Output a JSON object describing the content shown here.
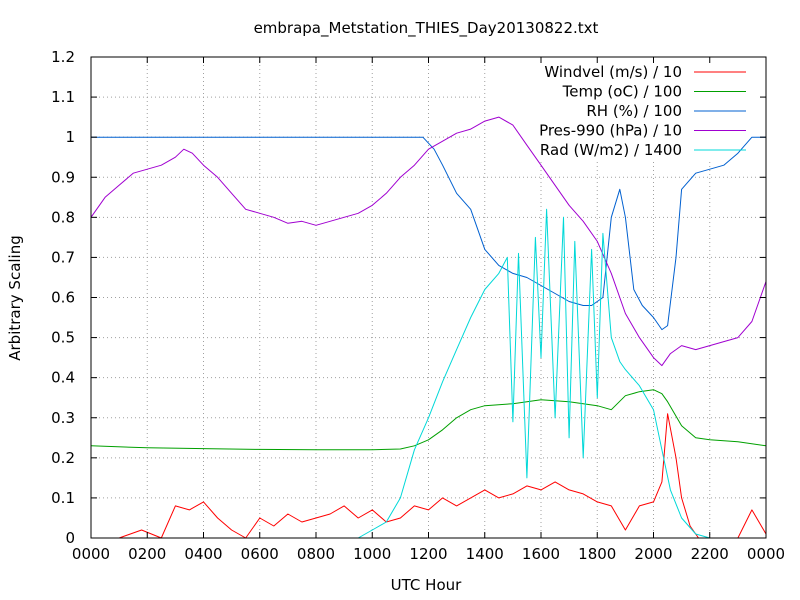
{
  "chart_data": {
    "type": "line",
    "title": "embrapa_Metstation_THIES_Day20130822.txt",
    "xlabel": "UTC Hour",
    "ylabel": "Arbitrary Scaling",
    "xlim": [
      0,
      24
    ],
    "ylim": [
      0,
      1.2
    ],
    "grid": true,
    "legend_position": "top-right",
    "x_ticks": [
      {
        "value": 0,
        "label": "0000"
      },
      {
        "value": 2,
        "label": "0200"
      },
      {
        "value": 4,
        "label": "0400"
      },
      {
        "value": 6,
        "label": "0600"
      },
      {
        "value": 8,
        "label": "0800"
      },
      {
        "value": 10,
        "label": "1000"
      },
      {
        "value": 12,
        "label": "1200"
      },
      {
        "value": 14,
        "label": "1400"
      },
      {
        "value": 16,
        "label": "1600"
      },
      {
        "value": 18,
        "label": "1800"
      },
      {
        "value": 20,
        "label": "2000"
      },
      {
        "value": 22,
        "label": "2200"
      },
      {
        "value": 24,
        "label": "0000"
      }
    ],
    "y_ticks": [
      {
        "value": 0,
        "label": "0"
      },
      {
        "value": 0.1,
        "label": "0.1"
      },
      {
        "value": 0.2,
        "label": "0.2"
      },
      {
        "value": 0.3,
        "label": "0.3"
      },
      {
        "value": 0.4,
        "label": "0.4"
      },
      {
        "value": 0.5,
        "label": "0.5"
      },
      {
        "value": 0.6,
        "label": "0.6"
      },
      {
        "value": 0.7,
        "label": "0.7"
      },
      {
        "value": 0.8,
        "label": "0.8"
      },
      {
        "value": 0.9,
        "label": "0.9"
      },
      {
        "value": 1.0,
        "label": "1"
      },
      {
        "value": 1.1,
        "label": "1.1"
      },
      {
        "value": 1.2,
        "label": "1.2"
      }
    ],
    "series": [
      {
        "name": "Windvel (m/s) / 10",
        "color": "#ff0000",
        "x": [
          0,
          1.0,
          1.8,
          2.5,
          3.0,
          3.5,
          4.0,
          4.5,
          5.0,
          5.5,
          6.0,
          6.5,
          7.0,
          7.5,
          8.0,
          8.5,
          9.0,
          9.5,
          10.0,
          10.5,
          11.0,
          11.5,
          12.0,
          12.5,
          13.0,
          13.5,
          14.0,
          14.5,
          15.0,
          15.5,
          16.0,
          16.5,
          17.0,
          17.5,
          18.0,
          18.5,
          19.0,
          19.5,
          20.0,
          20.3,
          20.5,
          20.8,
          21.0,
          21.3,
          21.6,
          22.0,
          22.5,
          23.0,
          23.5,
          24.0
        ],
        "y": [
          0.0,
          0.0,
          0.02,
          0.0,
          0.08,
          0.07,
          0.09,
          0.05,
          0.02,
          0.0,
          0.05,
          0.03,
          0.06,
          0.04,
          0.05,
          0.06,
          0.08,
          0.05,
          0.07,
          0.04,
          0.05,
          0.08,
          0.07,
          0.1,
          0.08,
          0.1,
          0.12,
          0.1,
          0.11,
          0.13,
          0.12,
          0.14,
          0.12,
          0.11,
          0.09,
          0.08,
          0.02,
          0.08,
          0.09,
          0.14,
          0.31,
          0.2,
          0.1,
          0.03,
          0.0,
          0.0,
          0.0,
          0.0,
          0.07,
          0.01
        ]
      },
      {
        "name": "Temp (oC) / 100",
        "color": "#00a000",
        "x": [
          0,
          2,
          4,
          6,
          8,
          9,
          10,
          11,
          11.5,
          12,
          12.5,
          13,
          13.5,
          14,
          15,
          16,
          17,
          18,
          18.5,
          19,
          19.5,
          20,
          20.3,
          20.5,
          21,
          21.5,
          22,
          23,
          24
        ],
        "y": [
          0.23,
          0.225,
          0.223,
          0.221,
          0.22,
          0.22,
          0.22,
          0.222,
          0.23,
          0.245,
          0.27,
          0.3,
          0.32,
          0.33,
          0.335,
          0.345,
          0.34,
          0.33,
          0.32,
          0.355,
          0.365,
          0.37,
          0.36,
          0.34,
          0.28,
          0.25,
          0.245,
          0.24,
          0.23
        ]
      },
      {
        "name": "RH (%) / 100",
        "color": "#0060d0",
        "x": [
          0,
          5,
          10,
          11.8,
          12.2,
          12.5,
          13,
          13.5,
          14,
          14.5,
          15,
          15.5,
          16,
          16.5,
          17,
          17.5,
          17.8,
          18.2,
          18.5,
          18.8,
          19.0,
          19.3,
          19.6,
          20.0,
          20.3,
          20.5,
          20.8,
          21,
          21.5,
          22,
          22.5,
          23,
          23.5,
          24
        ],
        "y": [
          1.0,
          1.0,
          1.0,
          1.0,
          0.97,
          0.93,
          0.86,
          0.82,
          0.72,
          0.68,
          0.66,
          0.65,
          0.63,
          0.61,
          0.59,
          0.58,
          0.58,
          0.6,
          0.8,
          0.87,
          0.8,
          0.62,
          0.58,
          0.55,
          0.52,
          0.53,
          0.7,
          0.87,
          0.91,
          0.92,
          0.93,
          0.96,
          1.0,
          1.0
        ]
      },
      {
        "name": "Pres-990 (hPa) / 10",
        "color": "#a000d0",
        "x": [
          0,
          0.5,
          1,
          1.5,
          2,
          2.5,
          3,
          3.3,
          3.6,
          4,
          4.5,
          5,
          5.5,
          6,
          6.5,
          7,
          7.5,
          8,
          8.5,
          9,
          9.5,
          10,
          10.5,
          11,
          11.5,
          12,
          12.5,
          13,
          13.5,
          14,
          14.5,
          15,
          15.5,
          16,
          16.5,
          17,
          17.5,
          18,
          18.5,
          19,
          19.5,
          20,
          20.3,
          20.6,
          21,
          21.5,
          22,
          22.5,
          23,
          23.5,
          24
        ],
        "y": [
          0.8,
          0.85,
          0.88,
          0.91,
          0.92,
          0.93,
          0.95,
          0.97,
          0.96,
          0.93,
          0.9,
          0.86,
          0.82,
          0.81,
          0.8,
          0.785,
          0.79,
          0.78,
          0.79,
          0.8,
          0.81,
          0.83,
          0.86,
          0.9,
          0.93,
          0.97,
          0.99,
          1.01,
          1.02,
          1.04,
          1.05,
          1.03,
          0.98,
          0.93,
          0.88,
          0.83,
          0.79,
          0.74,
          0.66,
          0.56,
          0.5,
          0.45,
          0.43,
          0.46,
          0.48,
          0.47,
          0.48,
          0.49,
          0.5,
          0.54,
          0.64
        ]
      },
      {
        "name": "Rad (W/m2) / 1400",
        "color": "#00d8d8",
        "x": [
          0,
          9.5,
          10.0,
          10.5,
          11.0,
          11.5,
          12.0,
          12.5,
          13.0,
          13.5,
          14.0,
          14.5,
          14.8,
          15.0,
          15.2,
          15.5,
          15.8,
          16.0,
          16.2,
          16.5,
          16.8,
          17.0,
          17.2,
          17.5,
          17.8,
          18.0,
          18.2,
          18.5,
          18.8,
          19.0,
          19.5,
          20.0,
          20.3,
          20.6,
          21.0,
          21.5,
          22.0,
          23.0,
          24.0
        ],
        "y": [
          0.0,
          0.0,
          0.02,
          0.04,
          0.1,
          0.22,
          0.3,
          0.39,
          0.47,
          0.55,
          0.62,
          0.66,
          0.7,
          0.29,
          0.71,
          0.15,
          0.75,
          0.45,
          0.82,
          0.3,
          0.8,
          0.25,
          0.74,
          0.2,
          0.72,
          0.35,
          0.76,
          0.5,
          0.44,
          0.42,
          0.38,
          0.32,
          0.22,
          0.12,
          0.05,
          0.01,
          0.0,
          0.0,
          0.0
        ]
      }
    ]
  }
}
